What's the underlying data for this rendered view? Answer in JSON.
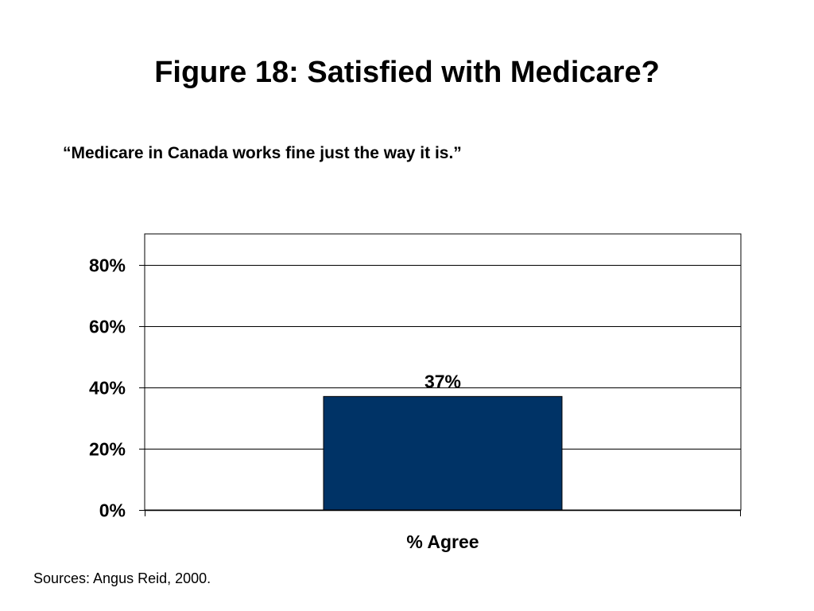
{
  "slide": {
    "title": "Figure 18: Satisfied with Medicare?",
    "subtitle": "“Medicare in Canada works fine just the way it is.”",
    "source": "Sources: Angus Reid, 2000."
  },
  "colors": {
    "bar": "#003366",
    "gridline": "#000000",
    "background": "#ffffff"
  },
  "chart_data": {
    "type": "bar",
    "categories": [
      "% Agree"
    ],
    "values": [
      37
    ],
    "data_labels": [
      "37%"
    ],
    "yticks": [
      0,
      20,
      40,
      60,
      80
    ],
    "ytick_labels": [
      "0%",
      "20%",
      "40%",
      "60%",
      "80%"
    ],
    "ylim": [
      0,
      90
    ],
    "grid": true,
    "legend": "none"
  }
}
